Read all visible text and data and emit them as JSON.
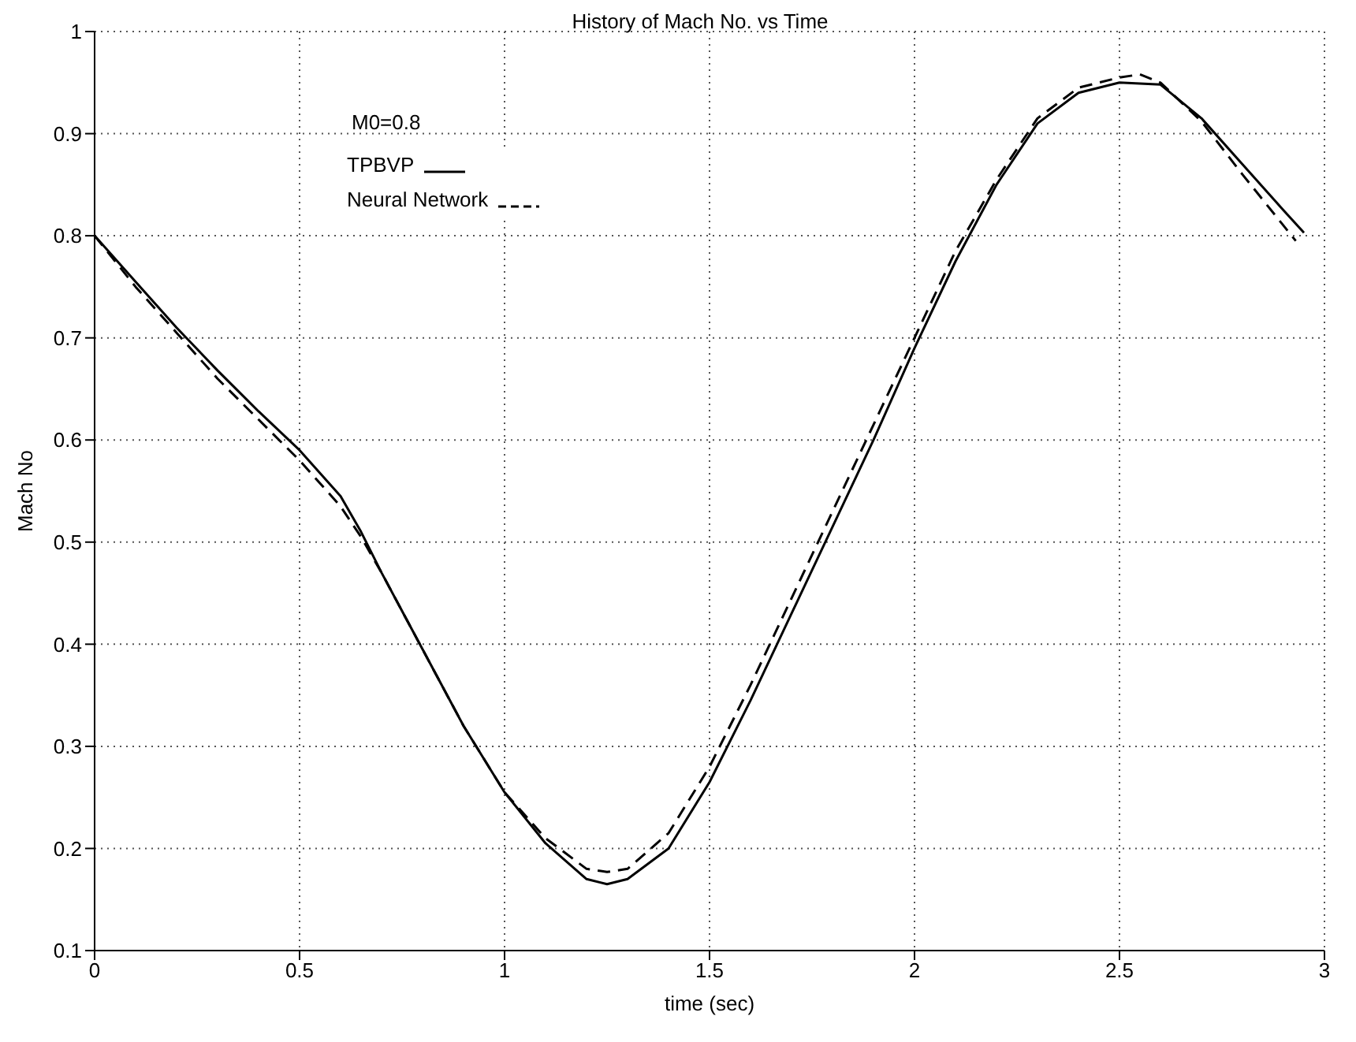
{
  "chart_data": {
    "type": "line",
    "title": "History of Mach No. vs Time",
    "xlabel": "time (sec)",
    "ylabel": "Mach No",
    "xlim": [
      0,
      3
    ],
    "xticks": [
      0,
      0.5,
      1,
      1.5,
      2,
      2.5,
      3
    ],
    "ylim": [
      0.1,
      1
    ],
    "yticks": [
      0.1,
      0.2,
      0.3,
      0.4,
      0.5,
      0.6,
      0.7,
      0.8,
      0.9,
      1
    ],
    "grid": true,
    "legend": "top left",
    "marker": "none",
    "annotations": [
      "M0=0.8"
    ],
    "series": [
      {
        "name": "TPBVP",
        "color": "#000000",
        "line_style": "solid",
        "x": [
          0,
          0.1,
          0.2,
          0.3,
          0.4,
          0.5,
          0.6,
          0.65,
          0.7,
          0.8,
          0.9,
          1.0,
          1.1,
          1.2,
          1.25,
          1.3,
          1.4,
          1.5,
          1.6,
          1.7,
          1.8,
          1.9,
          2.0,
          2.1,
          2.2,
          2.3,
          2.4,
          2.5,
          2.6,
          2.7,
          2.8,
          2.9,
          2.95
        ],
        "values": [
          0.8,
          0.755,
          0.71,
          0.668,
          0.628,
          0.59,
          0.545,
          0.51,
          0.47,
          0.395,
          0.32,
          0.255,
          0.205,
          0.17,
          0.165,
          0.17,
          0.2,
          0.265,
          0.345,
          0.43,
          0.515,
          0.6,
          0.69,
          0.775,
          0.85,
          0.91,
          0.94,
          0.95,
          0.948,
          0.915,
          0.87,
          0.825,
          0.803
        ]
      },
      {
        "name": "Neural Network",
        "color": "#000000",
        "line_style": "dashed",
        "x": [
          0,
          0.1,
          0.2,
          0.3,
          0.4,
          0.5,
          0.6,
          0.65,
          0.7,
          0.8,
          0.9,
          1.0,
          1.1,
          1.2,
          1.25,
          1.3,
          1.4,
          1.5,
          1.6,
          1.7,
          1.8,
          1.9,
          2.0,
          2.1,
          2.2,
          2.3,
          2.4,
          2.5,
          2.55,
          2.6,
          2.7,
          2.8,
          2.9,
          2.93
        ],
        "values": [
          0.8,
          0.75,
          0.705,
          0.66,
          0.62,
          0.58,
          0.535,
          0.505,
          0.47,
          0.395,
          0.32,
          0.255,
          0.21,
          0.18,
          0.177,
          0.18,
          0.215,
          0.28,
          0.36,
          0.445,
          0.53,
          0.615,
          0.7,
          0.785,
          0.855,
          0.915,
          0.945,
          0.955,
          0.958,
          0.95,
          0.912,
          0.86,
          0.81,
          0.795
        ]
      }
    ]
  }
}
